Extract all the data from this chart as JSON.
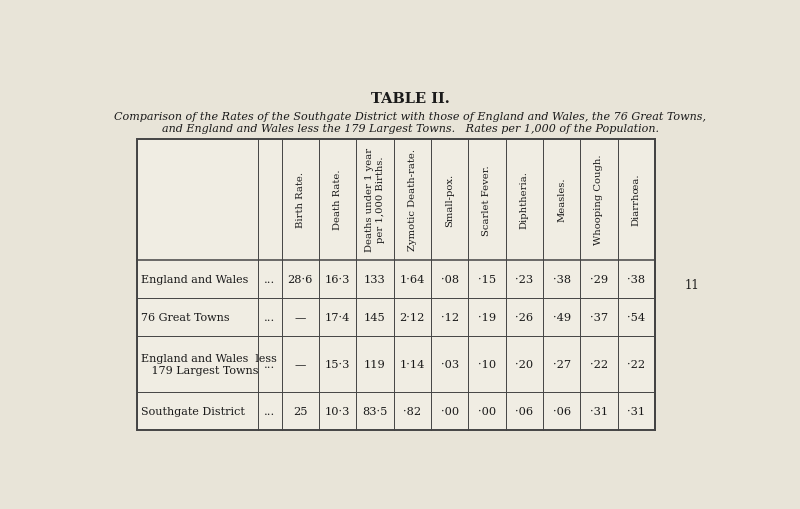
{
  "title": "TABLE II.",
  "subtitle_line1": "Comparison of the Rates of the Southgate District with those of England and Wales, the 76 Great Towns,",
  "subtitle_line2": "and England and Wales less the 179 Largest Towns.   Rates per 1,000 of the Population.",
  "col_headers": [
    "Birth Rate.",
    "Death Rate.",
    "Deaths under 1 year\nper 1,000 Births.",
    "Zymotic Death-rate.",
    "Small-pox.",
    "Scarlet Fever.",
    "Diphtheria.",
    "Measles.",
    "Whooping Cough.",
    "Diarrhœa."
  ],
  "row_label_texts": [
    "England and Wales",
    "76 Great Towns",
    "England and Wales  less\n   179 Largest Towns",
    "Southgate District"
  ],
  "data": [
    [
      "28·6",
      "16·3",
      "133",
      "1·64",
      "·08",
      "·15",
      "·23",
      "·38",
      "·29",
      "·38"
    ],
    [
      "—",
      "17·4",
      "145",
      "2·12",
      "·12",
      "·19",
      "·26",
      "·49",
      "·37",
      "·54"
    ],
    [
      "—",
      "15·3",
      "119",
      "1·14",
      "·03",
      "·10",
      "·20",
      "·27",
      "·22",
      "·22"
    ],
    [
      "25",
      "10·3",
      "83·5",
      "·82",
      "·00",
      "·00",
      "·06",
      "·06",
      "·31",
      "·31"
    ]
  ],
  "background_color": "#e8e4d8",
  "table_bg": "#f0ede3",
  "border_color": "#444444",
  "text_color": "#1a1a1a",
  "page_number": "11",
  "title_fontsize": 10.5,
  "subtitle_fontsize": 8.0,
  "header_fontsize": 7.2,
  "cell_fontsize": 8.2,
  "label_fontsize": 8.0
}
